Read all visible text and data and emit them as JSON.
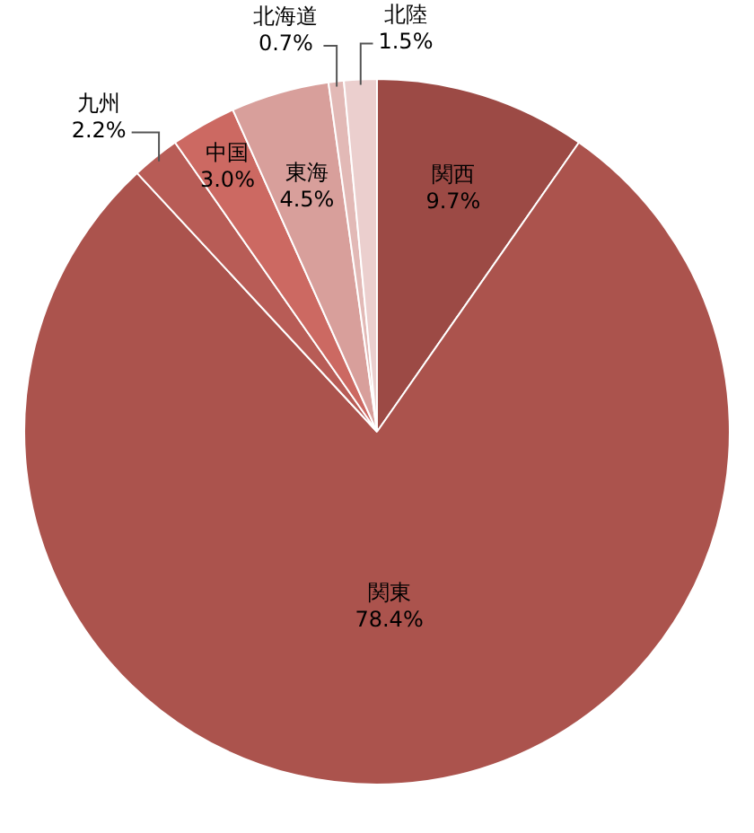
{
  "chart_data": {
    "type": "pie",
    "categories": [
      "関西",
      "関東",
      "九州",
      "中国",
      "東海",
      "北海道",
      "北陸"
    ],
    "values": [
      9.7,
      78.4,
      2.2,
      3.0,
      4.5,
      0.7,
      1.5
    ],
    "colors": [
      "#9c4a45",
      "#ab534d",
      "#b85c56",
      "#cc6962",
      "#d89f9b",
      "#e2b9b6",
      "#ebcfce"
    ],
    "value_labels": [
      "9.7%",
      "78.4%",
      "2.2%",
      "3.0%",
      "4.5%",
      "0.7%",
      "1.5%"
    ]
  }
}
